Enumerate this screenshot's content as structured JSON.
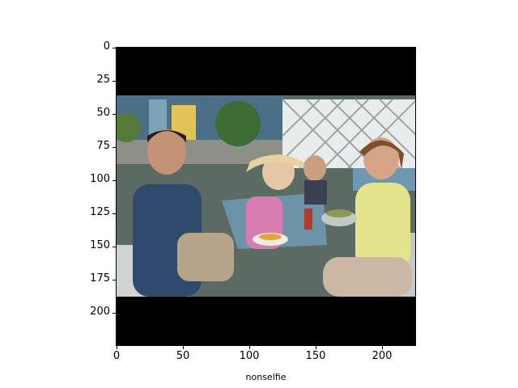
{
  "figure": {
    "xlabel": "nonselfie",
    "x_ticks": [
      "0",
      "50",
      "100",
      "150",
      "200"
    ],
    "y_ticks": [
      "0",
      "25",
      "50",
      "75",
      "100",
      "125",
      "150",
      "175",
      "200"
    ]
  },
  "image": {
    "description_icon": "photo-of-family-at-outdoor-cafe",
    "background_color": "#000000"
  },
  "chart_data": {
    "type": "image",
    "xlim": [
      0,
      225
    ],
    "ylim": [
      225,
      0
    ],
    "xlabel": "nonselfie",
    "x_ticks": [
      0,
      50,
      100,
      150,
      200
    ],
    "y_ticks": [
      0,
      25,
      50,
      75,
      100,
      125,
      150,
      175,
      200
    ]
  }
}
